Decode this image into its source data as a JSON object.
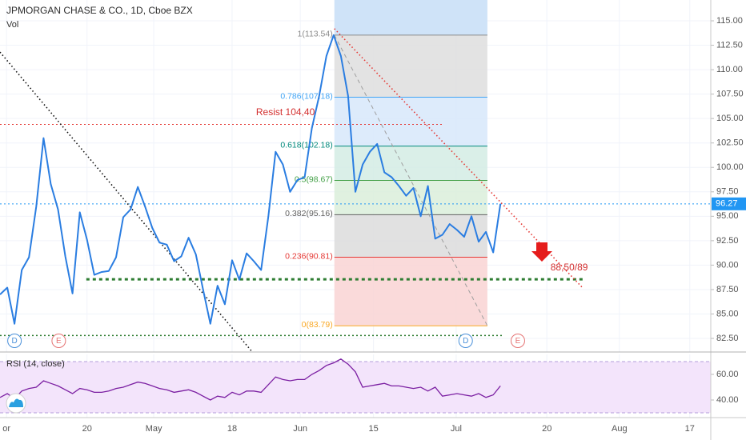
{
  "chart_data": {
    "type": "line",
    "title": "JPMORGAN CHASE & CO., 1D, Cboe BZX",
    "volume_label": "Vol",
    "color": "#2a7de1",
    "x": [
      0,
      1,
      2,
      3,
      4,
      5,
      6,
      7,
      8,
      9,
      10,
      11,
      12,
      13,
      14,
      15,
      16,
      17,
      18,
      19,
      20,
      21,
      22,
      23,
      24,
      25,
      26,
      27,
      28,
      29,
      30,
      31,
      32,
      33,
      34,
      35,
      36,
      37,
      38,
      39,
      40,
      41,
      42,
      43,
      44,
      45,
      46,
      47,
      48,
      49,
      50,
      51,
      52,
      53,
      54,
      55,
      56,
      57,
      58,
      59,
      60,
      61,
      62,
      63,
      64,
      65,
      66,
      67,
      68,
      69
    ],
    "values": [
      87.0,
      87.7,
      84.0,
      89.5,
      90.8,
      96.0,
      103.0,
      98.3,
      95.7,
      90.9,
      87.1,
      95.4,
      92.6,
      89.0,
      89.3,
      89.4,
      90.8,
      94.9,
      95.7,
      98.0,
      96.0,
      93.8,
      92.3,
      92.1,
      90.4,
      90.9,
      92.8,
      91.1,
      87.5,
      84.0,
      87.9,
      86.0,
      90.5,
      88.5,
      91.2,
      90.4,
      89.5,
      95.0,
      101.6,
      100.3,
      97.5,
      98.7,
      99.0,
      104.0,
      107.3,
      111.4,
      113.54,
      111.4,
      107.3,
      97.5,
      100.3,
      101.6,
      102.4,
      99.5,
      99.0,
      98.1,
      97.1,
      97.9,
      95.0,
      98.1,
      92.7,
      93.1,
      94.2,
      93.6,
      92.9,
      95.0,
      92.4,
      93.4,
      91.3,
      96.27
    ],
    "xlim": [
      0,
      98
    ],
    "xticks": [
      {
        "value": 0.9,
        "label": "or"
      },
      {
        "value": 12.0,
        "label": "20"
      },
      {
        "value": 21.2,
        "label": "May"
      },
      {
        "value": 32.0,
        "label": "18"
      },
      {
        "value": 41.4,
        "label": "Jun"
      },
      {
        "value": 51.5,
        "label": "15"
      },
      {
        "value": 62.9,
        "label": "Jul"
      },
      {
        "value": 75.4,
        "label": "20"
      },
      {
        "value": 85.4,
        "label": "Aug"
      },
      {
        "value": 95.1,
        "label": "17"
      }
    ],
    "ylim": [
      81.11,
      117.13
    ],
    "yticks": [
      {
        "value": 82.5,
        "label": "82.50"
      },
      {
        "value": 85,
        "label": "85.00"
      },
      {
        "value": 87.5,
        "label": "87.50"
      },
      {
        "value": 90,
        "label": "90.00"
      },
      {
        "value": 92.5,
        "label": "92.50"
      },
      {
        "value": 95,
        "label": "95.00"
      },
      {
        "value": 97.5,
        "label": "97.50"
      },
      {
        "value": 100,
        "label": "100.00"
      },
      {
        "value": 102.5,
        "label": "102.50"
      },
      {
        "value": 105,
        "label": "105.00"
      },
      {
        "value": 107.5,
        "label": "107.50"
      },
      {
        "value": 110,
        "label": "110.00"
      },
      {
        "value": 112.5,
        "label": "112.50"
      },
      {
        "value": 115,
        "label": "115.00"
      }
    ],
    "grid": true,
    "last_price": 96.27,
    "last_price_color": "#2196f3",
    "fib_x": [
      46.1,
      67.2
    ],
    "fib_top_fill": "#cfe3f8",
    "fib_levels": [
      {
        "value": 113.54,
        "label": "1(113.54)",
        "color": "#8a8a8a",
        "fill": "#dedede"
      },
      {
        "value": 107.18,
        "label": "0.786(107.18)",
        "color": "#42a5f5",
        "fill": "#d7e8fa"
      },
      {
        "value": 102.18,
        "label": "0.618(102.18)",
        "color": "#00897b",
        "fill": "#d3ece4"
      },
      {
        "value": 98.67,
        "label": "0.5(98.67)",
        "color": "#43a047",
        "fill": "#dbeedb"
      },
      {
        "value": 95.16,
        "label": "0.382(95.16)",
        "color": "#616161",
        "fill": "#dcdcdc"
      },
      {
        "value": 90.81,
        "label": "0.236(90.81)",
        "color": "#e53935",
        "fill": "#f9d3d3"
      },
      {
        "value": 83.79,
        "label": "0(83.79)",
        "color": "#f9a825"
      }
    ],
    "hlines": [
      {
        "value": 104.4,
        "x": [
          0,
          61.0
        ],
        "color": "#e53935",
        "width": 1
      },
      {
        "value": 88.55,
        "x": [
          11.9,
          80.4
        ],
        "color": "#2e7d32",
        "width": 3
      },
      {
        "value": 82.8,
        "x": [
          0,
          69.5
        ],
        "color": "#2e7d32",
        "width": 1.5
      },
      {
        "value": 96.27,
        "x": [
          0,
          98
        ],
        "color": "#2196f3",
        "width": 1
      }
    ],
    "trend_lines": [
      {
        "x": [
          0,
          34.8
        ],
        "y": [
          111.8,
          81.1
        ],
        "color": "#111111",
        "style": "dotted"
      },
      {
        "x": [
          46.1,
          80.3
        ],
        "y": [
          114.2,
          87.7
        ],
        "color": "#e53935",
        "style": "dotted"
      },
      {
        "x": [
          46.1,
          67.2
        ],
        "y": [
          113.54,
          83.79
        ],
        "color": "#9e9e9e",
        "style": "dashed"
      }
    ],
    "annotations": [
      {
        "text": "Resist 104,40",
        "x": 35.3,
        "y": 105.6,
        "color": "#d32f2f"
      },
      {
        "text": "88,50/89",
        "x": 75.9,
        "y": 89.7,
        "color": "#d32f2f"
      }
    ],
    "events": [
      {
        "label": "D",
        "x": 2.0,
        "color": "#4a90d9"
      },
      {
        "label": "E",
        "x": 8.1,
        "color": "#e57373"
      },
      {
        "label": "D",
        "x": 64.2,
        "color": "#4a90d9"
      },
      {
        "label": "E",
        "x": 71.4,
        "color": "#e57373"
      }
    ],
    "rsi": {
      "label": "RSI (14, close)",
      "color": "#7b1fa2",
      "band_fill": "#f3e4fb",
      "bands": [
        30,
        70
      ],
      "ylim": [
        26.25,
        75.6
      ],
      "yticks": [
        {
          "value": 40,
          "label": "40.00"
        },
        {
          "value": 60,
          "label": "60.00"
        }
      ],
      "values": [
        42,
        45,
        41,
        47,
        49,
        50,
        55,
        53,
        51,
        48,
        45,
        49,
        48,
        46,
        46,
        47,
        49,
        50,
        52,
        54,
        53,
        51,
        49,
        48,
        46,
        47,
        48,
        46,
        43,
        40,
        43,
        42,
        46,
        44,
        47,
        47,
        46,
        52,
        58,
        56,
        55,
        56,
        56,
        60,
        63,
        67,
        69,
        72,
        68,
        62,
        50,
        51,
        52,
        53,
        51,
        51,
        50,
        49,
        50,
        47,
        50,
        43,
        44,
        45,
        44,
        43,
        45,
        42,
        44,
        51
      ]
    }
  }
}
